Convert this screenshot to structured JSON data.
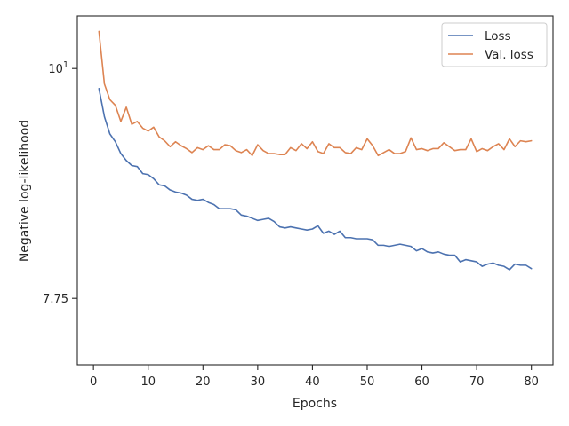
{
  "chart_data": {
    "type": "line",
    "xlabel": "Epochs",
    "ylabel": "Negative log-likelihood",
    "y_scale": "log",
    "xlim": [
      -2.95,
      83.95
    ],
    "ylim": [
      7.2,
      10.6
    ],
    "x_ticks": [
      0,
      10,
      20,
      30,
      40,
      50,
      60,
      70,
      80
    ],
    "y_ticks": [
      7.75,
      10
    ],
    "y_tick_labels": [
      "7.75",
      "10^1"
    ],
    "grid": false,
    "legend_position": "top-right",
    "x": [
      1,
      2,
      3,
      4,
      5,
      6,
      7,
      8,
      9,
      10,
      11,
      12,
      13,
      14,
      15,
      16,
      17,
      18,
      19,
      20,
      21,
      22,
      23,
      24,
      25,
      26,
      27,
      28,
      29,
      30,
      31,
      32,
      33,
      34,
      35,
      36,
      37,
      38,
      39,
      40,
      41,
      42,
      43,
      44,
      45,
      46,
      47,
      48,
      49,
      50,
      51,
      52,
      53,
      54,
      55,
      56,
      57,
      58,
      59,
      60,
      61,
      62,
      63,
      64,
      65,
      66,
      67,
      68,
      69,
      70,
      71,
      72,
      73,
      74,
      75,
      76,
      77,
      78,
      79,
      80
    ],
    "series": [
      {
        "name": "Loss",
        "color": "#4c72b0",
        "values": [
          9.78,
          9.48,
          9.3,
          9.22,
          9.1,
          9.03,
          8.98,
          8.97,
          8.9,
          8.89,
          8.85,
          8.79,
          8.78,
          8.74,
          8.72,
          8.71,
          8.69,
          8.65,
          8.64,
          8.65,
          8.62,
          8.6,
          8.56,
          8.56,
          8.56,
          8.55,
          8.5,
          8.49,
          8.47,
          8.45,
          8.46,
          8.47,
          8.44,
          8.39,
          8.38,
          8.39,
          8.38,
          8.37,
          8.36,
          8.37,
          8.4,
          8.33,
          8.35,
          8.32,
          8.35,
          8.29,
          8.29,
          8.28,
          8.28,
          8.28,
          8.27,
          8.22,
          8.22,
          8.21,
          8.22,
          8.23,
          8.22,
          8.21,
          8.17,
          8.19,
          8.16,
          8.15,
          8.16,
          8.14,
          8.13,
          8.13,
          8.07,
          8.09,
          8.08,
          8.07,
          8.03,
          8.05,
          8.06,
          8.04,
          8.03,
          8.0,
          8.05,
          8.04,
          8.04,
          8.01
        ]
      },
      {
        "name": "Val. loss",
        "color": "#dd8452",
        "values": [
          10.42,
          9.83,
          9.66,
          9.6,
          9.43,
          9.58,
          9.4,
          9.43,
          9.36,
          9.33,
          9.37,
          9.27,
          9.23,
          9.17,
          9.22,
          9.18,
          9.15,
          9.11,
          9.16,
          9.14,
          9.18,
          9.14,
          9.14,
          9.19,
          9.18,
          9.13,
          9.11,
          9.14,
          9.08,
          9.19,
          9.13,
          9.1,
          9.1,
          9.09,
          9.09,
          9.16,
          9.13,
          9.2,
          9.15,
          9.22,
          9.12,
          9.1,
          9.2,
          9.16,
          9.16,
          9.11,
          9.1,
          9.16,
          9.14,
          9.25,
          9.18,
          9.08,
          9.11,
          9.14,
          9.1,
          9.1,
          9.12,
          9.26,
          9.14,
          9.15,
          9.13,
          9.15,
          9.15,
          9.21,
          9.17,
          9.13,
          9.14,
          9.14,
          9.25,
          9.12,
          9.15,
          9.13,
          9.17,
          9.2,
          9.14,
          9.25,
          9.17,
          9.23,
          9.22,
          9.23
        ]
      }
    ]
  }
}
